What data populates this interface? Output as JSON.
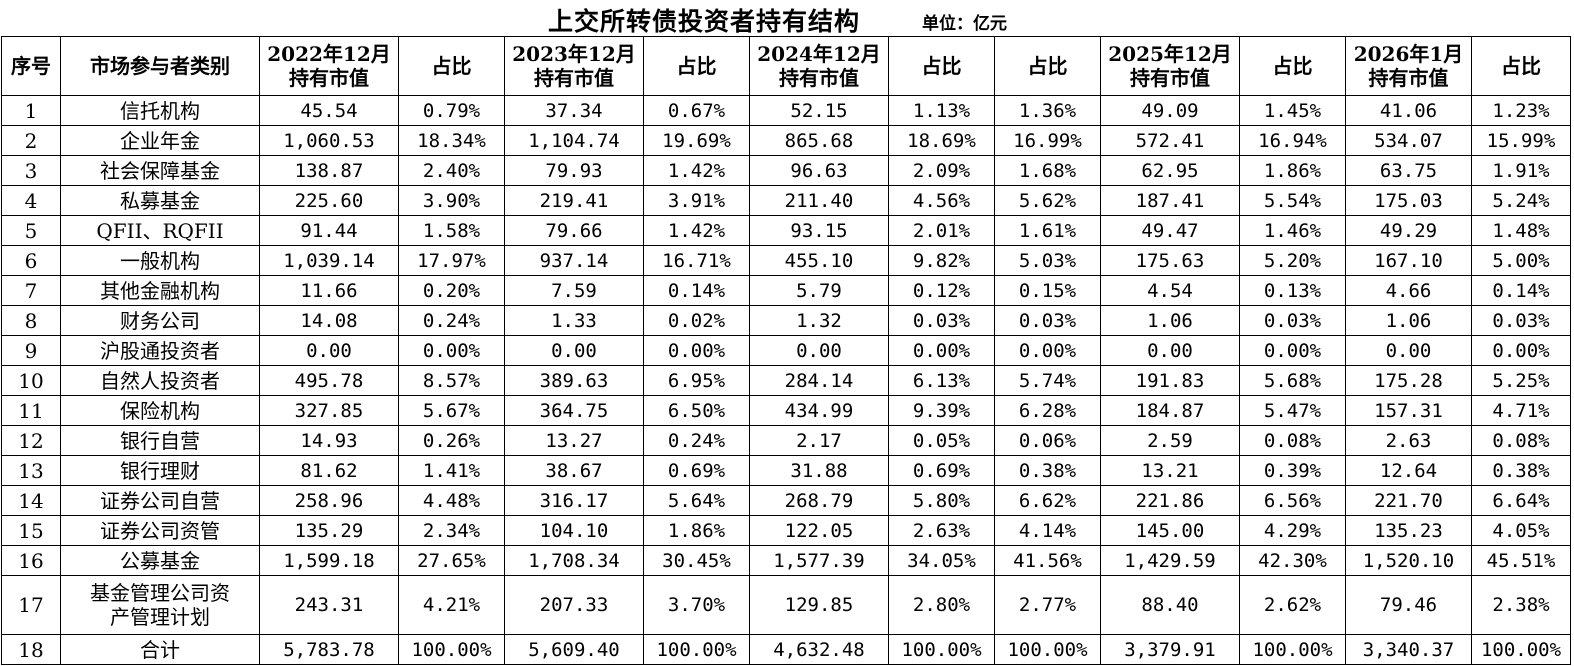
{
  "title": "上交所转债投资者持有结构",
  "unit": "单位：亿元",
  "headers": [
    [
      "序号"
    ],
    [
      "市场参与者类别"
    ],
    [
      "2022年12月",
      "持有市值"
    ],
    [
      "占比"
    ],
    [
      "2023年12月",
      "持有市值"
    ],
    [
      "占比"
    ],
    [
      "2024年12月",
      "持有市值"
    ],
    [
      "占比"
    ],
    [
      "占比"
    ],
    [
      "2025年12月",
      "持有市值"
    ],
    [
      "占比"
    ],
    [
      "2026年1月",
      "持有市值"
    ],
    [
      "占比"
    ]
  ],
  "rows": [
    [
      "1",
      "信托机构",
      "45.54",
      "0.79%",
      "37.34",
      "0.67%",
      "52.15",
      "1.13%",
      "1.36%",
      "49.09",
      "1.45%",
      "41.06",
      "1.23%"
    ],
    [
      "2",
      "企业年金",
      "1,060.53",
      "18.34%",
      "1,104.74",
      "19.69%",
      "865.68",
      "18.69%",
      "16.99%",
      "572.41",
      "16.94%",
      "534.07",
      "15.99%"
    ],
    [
      "3",
      "社会保障基金",
      "138.87",
      "2.40%",
      "79.93",
      "1.42%",
      "96.63",
      "2.09%",
      "1.68%",
      "62.95",
      "1.86%",
      "63.75",
      "1.91%"
    ],
    [
      "4",
      "私募基金",
      "225.60",
      "3.90%",
      "219.41",
      "3.91%",
      "211.40",
      "4.56%",
      "5.62%",
      "187.41",
      "5.54%",
      "175.03",
      "5.24%"
    ],
    [
      "5",
      "QFII、RQFII",
      "91.44",
      "1.58%",
      "79.66",
      "1.42%",
      "93.15",
      "2.01%",
      "1.61%",
      "49.47",
      "1.46%",
      "49.29",
      "1.48%"
    ],
    [
      "6",
      "一般机构",
      "1,039.14",
      "17.97%",
      "937.14",
      "16.71%",
      "455.10",
      "9.82%",
      "5.03%",
      "175.63",
      "5.20%",
      "167.10",
      "5.00%"
    ],
    [
      "7",
      "其他金融机构",
      "11.66",
      "0.20%",
      "7.59",
      "0.14%",
      "5.79",
      "0.12%",
      "0.15%",
      "4.54",
      "0.13%",
      "4.66",
      "0.14%"
    ],
    [
      "8",
      "财务公司",
      "14.08",
      "0.24%",
      "1.33",
      "0.02%",
      "1.32",
      "0.03%",
      "0.03%",
      "1.06",
      "0.03%",
      "1.06",
      "0.03%"
    ],
    [
      "9",
      "沪股通投资者",
      "0.00",
      "0.00%",
      "0.00",
      "0.00%",
      "0.00",
      "0.00%",
      "0.00%",
      "0.00",
      "0.00%",
      "0.00",
      "0.00%"
    ],
    [
      "10",
      "自然人投资者",
      "495.78",
      "8.57%",
      "389.63",
      "6.95%",
      "284.14",
      "6.13%",
      "5.74%",
      "191.83",
      "5.68%",
      "175.28",
      "5.25%"
    ],
    [
      "11",
      "保险机构",
      "327.85",
      "5.67%",
      "364.75",
      "6.50%",
      "434.99",
      "9.39%",
      "6.28%",
      "184.87",
      "5.47%",
      "157.31",
      "4.71%"
    ],
    [
      "12",
      "银行自营",
      "14.93",
      "0.26%",
      "13.27",
      "0.24%",
      "2.17",
      "0.05%",
      "0.06%",
      "2.59",
      "0.08%",
      "2.63",
      "0.08%"
    ],
    [
      "13",
      "银行理财",
      "81.62",
      "1.41%",
      "38.67",
      "0.69%",
      "31.88",
      "0.69%",
      "0.38%",
      "13.21",
      "0.39%",
      "12.64",
      "0.38%"
    ],
    [
      "14",
      "证券公司自营",
      "258.96",
      "4.48%",
      "316.17",
      "5.64%",
      "268.79",
      "5.80%",
      "6.62%",
      "221.86",
      "6.56%",
      "221.70",
      "6.64%"
    ],
    [
      "15",
      "证券公司资管",
      "135.29",
      "2.34%",
      "104.10",
      "1.86%",
      "122.05",
      "2.63%",
      "4.14%",
      "145.00",
      "4.29%",
      "135.23",
      "4.05%"
    ],
    [
      "16",
      "公募基金",
      "1,599.18",
      "27.65%",
      "1,708.34",
      "30.45%",
      "1,577.39",
      "34.05%",
      "41.56%",
      "1,429.59",
      "42.30%",
      "1,520.10",
      "45.51%"
    ],
    [
      "17",
      "基金管理公司资产管理计划",
      "243.31",
      "4.21%",
      "207.33",
      "3.70%",
      "129.85",
      "2.80%",
      "2.77%",
      "88.40",
      "2.62%",
      "79.46",
      "2.38%"
    ],
    [
      "18",
      "合计",
      "5,783.78",
      "100.00%",
      "5,609.40",
      "100.00%",
      "4,632.48",
      "100.00%",
      "100.00%",
      "3,379.91",
      "100.00%",
      "3,340.37",
      "100.00%"
    ]
  ]
}
